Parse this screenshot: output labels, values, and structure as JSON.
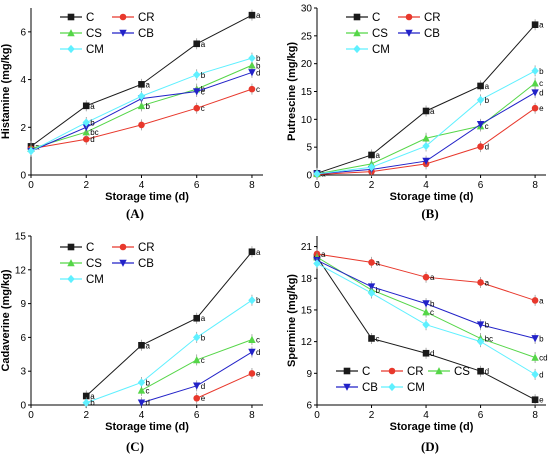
{
  "colors": {
    "C": "#1a1a1a",
    "CR": "#e8382c",
    "CS": "#55d648",
    "CB": "#2222c8",
    "CM": "#5ff0ff",
    "errbar": "#888888"
  },
  "chart_data": [
    {
      "type": "line",
      "panel_label": "(A)",
      "xlabel": "Storage time (d)",
      "ylabel": "Histamine (mg/kg)",
      "x": [
        0,
        2,
        4,
        6,
        8
      ],
      "xlim": [
        0,
        8.4
      ],
      "ylim": [
        0,
        7
      ],
      "xticks": [
        "0",
        "2",
        "4",
        "6",
        "8"
      ],
      "yticks": [
        "0",
        "2",
        "4",
        "6"
      ],
      "legend_position": "top-left",
      "series": [
        {
          "name": "C",
          "marker": "square",
          "values": [
            1.2,
            2.9,
            3.8,
            5.5,
            6.7
          ],
          "letters": [
            "a",
            "a",
            "a",
            "a",
            "a"
          ]
        },
        {
          "name": "CR",
          "marker": "circle",
          "values": [
            1.1,
            1.5,
            2.1,
            2.8,
            3.6
          ],
          "letters": [
            "",
            "d",
            "",
            "c",
            "c"
          ]
        },
        {
          "name": "CS",
          "marker": "triangle-up",
          "values": [
            1.1,
            1.8,
            2.9,
            3.6,
            4.6
          ],
          "letters": [
            "",
            "bc",
            "b",
            "b",
            "b"
          ]
        },
        {
          "name": "CB",
          "marker": "triangle-down",
          "values": [
            1.0,
            2.0,
            3.2,
            3.5,
            4.3
          ],
          "letters": [
            "",
            "",
            "",
            "c",
            "d"
          ]
        },
        {
          "name": "CM",
          "marker": "diamond",
          "values": [
            1.0,
            2.2,
            3.3,
            4.2,
            4.9
          ],
          "letters": [
            "",
            "b",
            "",
            "b",
            "b"
          ]
        }
      ]
    },
    {
      "type": "line",
      "panel_label": "(B)",
      "xlabel": "Storage time (d)",
      "ylabel": "Putrescine (mg/kg)",
      "x": [
        0,
        2,
        4,
        6,
        8
      ],
      "xlim": [
        0,
        8.4
      ],
      "ylim": [
        0,
        30
      ],
      "xticks": [
        "0",
        "2",
        "4",
        "6",
        "8"
      ],
      "yticks": [
        "0",
        "5",
        "10",
        "15",
        "20",
        "25",
        "30"
      ],
      "legend_position": "top-left",
      "series": [
        {
          "name": "C",
          "marker": "square",
          "values": [
            0.3,
            3.6,
            11.5,
            16.0,
            27.0
          ],
          "letters": [
            "a",
            "a",
            "a",
            "a",
            "a"
          ]
        },
        {
          "name": "CR",
          "marker": "circle",
          "values": [
            0.1,
            0.6,
            2.0,
            5.1,
            12.0
          ],
          "letters": [
            "",
            "",
            "",
            "d",
            "e"
          ]
        },
        {
          "name": "CS",
          "marker": "triangle-up",
          "values": [
            0.2,
            2.0,
            6.6,
            8.8,
            16.5
          ],
          "letters": [
            "",
            "",
            "",
            "c",
            "c"
          ]
        },
        {
          "name": "CB",
          "marker": "triangle-down",
          "values": [
            0.2,
            1.0,
            2.5,
            9.1,
            14.8
          ],
          "letters": [
            "",
            "",
            "",
            "",
            "d"
          ]
        },
        {
          "name": "CM",
          "marker": "diamond",
          "values": [
            0.2,
            1.4,
            5.2,
            13.5,
            18.7
          ],
          "letters": [
            "",
            "",
            "",
            "b",
            "b"
          ]
        }
      ]
    },
    {
      "type": "line",
      "panel_label": "(C)",
      "xlabel": "Storage time (d)",
      "ylabel": "Cadaverine (mg/kg)",
      "x": [
        0,
        2,
        4,
        6,
        8
      ],
      "xlim": [
        0,
        8.4
      ],
      "ylim": [
        0,
        15
      ],
      "xticks": [
        "0",
        "2",
        "4",
        "6",
        "8"
      ],
      "yticks": [
        "0",
        "3",
        "6",
        "9",
        "12",
        "15"
      ],
      "legend_position": "top-left",
      "series": [
        {
          "name": "C",
          "marker": "square",
          "x": [
            2,
            4,
            6,
            8
          ],
          "values": [
            0.8,
            5.3,
            7.7,
            13.6
          ],
          "letters": [
            "a",
            "a",
            "a",
            "a"
          ]
        },
        {
          "name": "CR",
          "marker": "circle",
          "x": [
            6,
            8
          ],
          "values": [
            0.6,
            2.8
          ],
          "letters": [
            "e",
            "e"
          ]
        },
        {
          "name": "CS",
          "marker": "triangle-up",
          "x": [
            4,
            6,
            8
          ],
          "values": [
            1.3,
            4.0,
            5.8
          ],
          "letters": [
            "c",
            "c",
            "c"
          ]
        },
        {
          "name": "CB",
          "marker": "triangle-down",
          "x": [
            4,
            6,
            8
          ],
          "values": [
            0.2,
            1.7,
            4.7
          ],
          "letters": [
            "d",
            "d",
            "d"
          ]
        },
        {
          "name": "CM",
          "marker": "diamond",
          "x": [
            2,
            4,
            6,
            8
          ],
          "values": [
            0.2,
            2.0,
            6.0,
            9.3
          ],
          "letters": [
            "b",
            "b",
            "b",
            "b"
          ]
        }
      ]
    },
    {
      "type": "line",
      "panel_label": "(D)",
      "xlabel": "Storage time (d)",
      "ylabel": "Spermine (mg/kg)",
      "x": [
        0,
        2,
        4,
        6,
        8
      ],
      "xlim": [
        0,
        8.4
      ],
      "ylim": [
        6,
        22
      ],
      "xticks": [
        "0",
        "2",
        "4",
        "6",
        "8"
      ],
      "yticks": [
        "6",
        "9",
        "12",
        "15",
        "18",
        "21"
      ],
      "legend_position": "bottom-left",
      "series": [
        {
          "name": "C",
          "marker": "square",
          "values": [
            20.0,
            12.3,
            10.9,
            9.2,
            6.5
          ],
          "letters": [
            "",
            "c",
            "d",
            "d",
            "e"
          ]
        },
        {
          "name": "CR",
          "marker": "circle",
          "values": [
            20.3,
            19.5,
            18.1,
            17.6,
            15.9
          ],
          "letters": [
            "a",
            "a",
            "a",
            "a",
            "a"
          ]
        },
        {
          "name": "CS",
          "marker": "triangle-up",
          "values": [
            20.0,
            16.9,
            14.8,
            12.3,
            10.5
          ],
          "letters": [
            "",
            "b",
            "c",
            "bc",
            "cd"
          ]
        },
        {
          "name": "CB",
          "marker": "triangle-down",
          "values": [
            19.7,
            17.2,
            15.6,
            13.6,
            12.3
          ],
          "letters": [
            "",
            "",
            "b",
            "b",
            "b"
          ]
        },
        {
          "name": "CM",
          "marker": "diamond",
          "values": [
            19.4,
            16.6,
            13.6,
            12.0,
            8.9
          ],
          "letters": [
            "",
            "",
            "",
            "",
            "d"
          ]
        }
      ]
    }
  ]
}
